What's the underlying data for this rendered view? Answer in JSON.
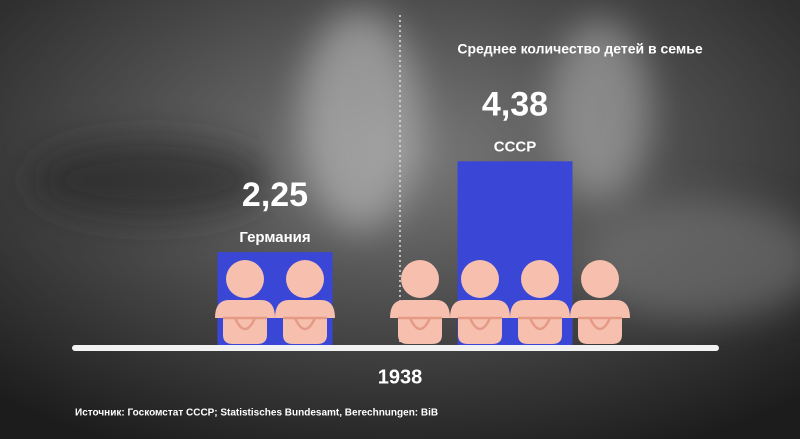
{
  "chart_data": {
    "type": "bar",
    "title": "Среднее количество детей в семье",
    "x_label": "1938",
    "source": "Источник: Госкомстат СССР; Statistisches Bundesamt, Berechnungen: BiB",
    "categories": [
      "Германия",
      "СССР"
    ],
    "values": [
      2.25,
      4.38
    ],
    "value_labels": [
      "2,25",
      "4,38"
    ],
    "color": "#3a46d6",
    "ylim": [
      0,
      8
    ]
  }
}
